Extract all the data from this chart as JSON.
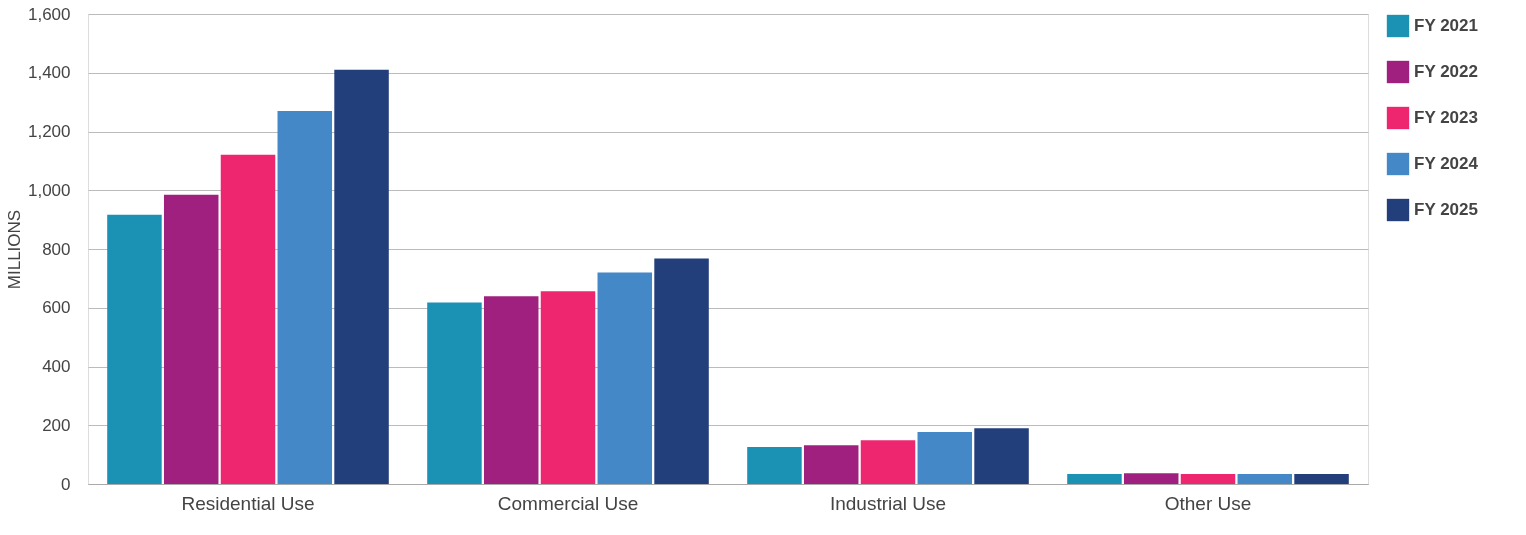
{
  "chart_data": {
    "type": "bar",
    "ylabel": "MILLIONS",
    "categories": [
      "Residential Use",
      "Commercial Use",
      "Industrial Use",
      "Other Use"
    ],
    "series": [
      {
        "name": "FY 2021",
        "color": "#1b91b4",
        "values": [
          917,
          618,
          126,
          34
        ]
      },
      {
        "name": "FY 2022",
        "color": "#a0207f",
        "values": [
          985,
          639,
          132,
          37
        ]
      },
      {
        "name": "FY 2023",
        "color": "#ee2670",
        "values": [
          1121,
          656,
          149,
          34
        ]
      },
      {
        "name": "FY 2024",
        "color": "#4588c8",
        "values": [
          1270,
          720,
          177,
          34
        ]
      },
      {
        "name": "FY 2025",
        "color": "#223f7c",
        "values": [
          1410,
          768,
          190,
          34
        ]
      }
    ],
    "ylim": [
      0,
      1600
    ],
    "yticks": [
      0,
      200,
      400,
      600,
      800,
      {
        "value": 1000,
        "label": "1,000"
      },
      {
        "value": 1200,
        "label": "1,200"
      },
      {
        "value": 1400,
        "label": "1,400"
      },
      {
        "value": 1600,
        "label": "1,600"
      }
    ],
    "grid": "y",
    "legend": "right"
  }
}
